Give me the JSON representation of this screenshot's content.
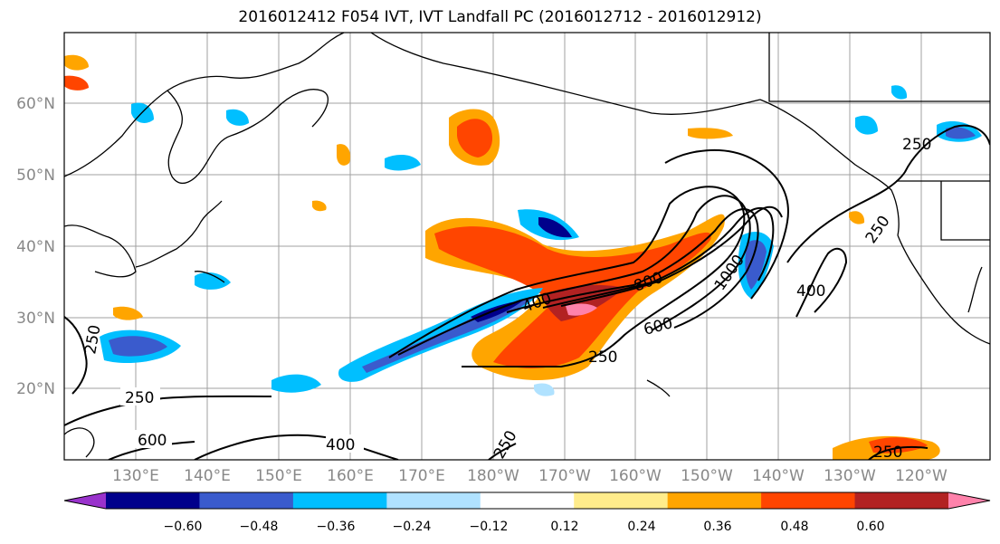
{
  "title": "2016012412 F054 IVT, IVT Landfall PC (2016012712 - 2016012912)",
  "map": {
    "lat_labels": [
      "60°N",
      "50°N",
      "40°N",
      "30°N",
      "20°N"
    ],
    "lon_labels": [
      "130°E",
      "140°E",
      "150°E",
      "160°E",
      "170°E",
      "180°W",
      "170°W",
      "160°W",
      "150°W",
      "140°W",
      "130°W",
      "120°W"
    ],
    "contour_labels": [
      "250",
      "400",
      "600",
      "800",
      "1000",
      "250",
      "400",
      "250",
      "250",
      "600",
      "400",
      "250",
      "250",
      "250"
    ]
  },
  "colorbar": {
    "tick_labels": [
      "−0.60",
      "−0.48",
      "−0.36",
      "−0.24",
      "−0.12",
      "0.12",
      "0.24",
      "0.36",
      "0.48",
      "0.60"
    ],
    "colors": [
      "#9932cc",
      "#00008b",
      "#3a5bcd",
      "#00bfff",
      "#b0e2ff",
      "#ffffff",
      "#ffec8b",
      "#ffa500",
      "#ff4500",
      "#b22222",
      "#ff82ab"
    ]
  },
  "colors": {
    "grid": "#a0a0a0",
    "coast": "#000000",
    "contour": "#000000"
  }
}
